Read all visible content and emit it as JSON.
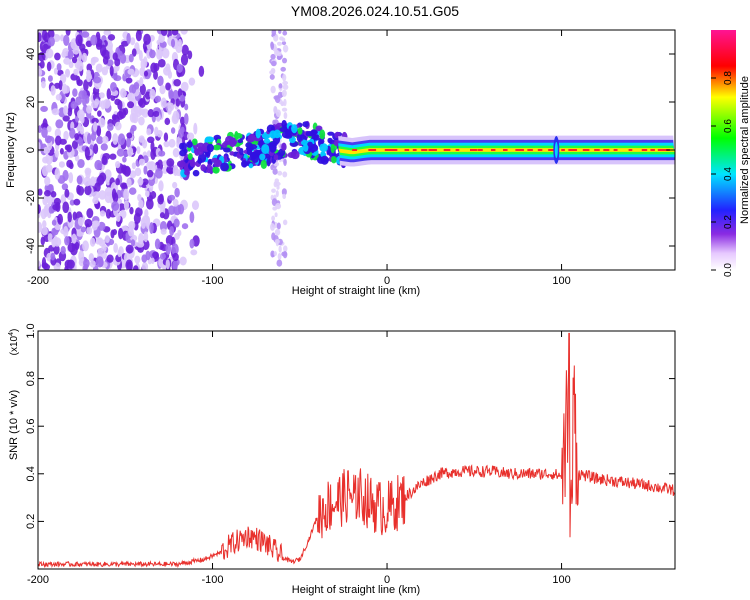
{
  "title": "YM08.2026.024.10.51.G05",
  "chart_data": [
    {
      "type": "heatmap",
      "xlabel": "Height of straight line (km)",
      "ylabel": "Frequency (Hz)",
      "xlim": [
        -200,
        165
      ],
      "ylim": [
        -50,
        50
      ],
      "x_ticks": [
        "-200",
        "-100",
        "0",
        "100"
      ],
      "x_tick_values": [
        -200,
        -100,
        0,
        100
      ],
      "y_ticks": [
        "-40",
        "-20",
        "0",
        "20",
        "40"
      ],
      "y_tick_values": [
        -40,
        -20,
        0,
        20,
        40
      ],
      "ridge": {
        "x": [
          -110,
          -100,
          -90,
          -80,
          -70,
          -60,
          -50,
          -40,
          -30,
          -20,
          -10,
          0,
          10,
          40,
          90,
          100,
          165
        ],
        "y": [
          -3,
          -2,
          -1,
          0,
          1,
          4,
          5,
          3,
          0,
          -1,
          0,
          0,
          0,
          0,
          0,
          0,
          0
        ]
      },
      "colorbar": {
        "label": "Normalized spectral amplitude",
        "range": [
          0,
          1
        ],
        "ticks": [
          "0.0",
          "0.2",
          "0.4",
          "0.6",
          "0.8"
        ],
        "tick_values": [
          0.0,
          0.2,
          0.4,
          0.6,
          0.8
        ]
      }
    },
    {
      "type": "line",
      "xlabel": "Height of straight line (km)",
      "ylabel": "SNR (10 * v/v)",
      "y_multiplier": "(x10",
      "y_multiplier_exp": "4",
      "y_multiplier_close": ")",
      "xlim": [
        -200,
        165
      ],
      "ylim": [
        0,
        1.0
      ],
      "x_ticks": [
        "-200",
        "-100",
        "0",
        "100"
      ],
      "x_tick_values": [
        -200,
        -100,
        0,
        100
      ],
      "y_ticks": [
        "0.2",
        "0.4",
        "0.6",
        "0.8",
        "1.0"
      ],
      "y_tick_values": [
        0.2,
        0.4,
        0.6,
        0.8,
        1.0
      ],
      "color": "#e8302c",
      "series": [
        {
          "name": "SNR",
          "x": [
            -200,
            -170,
            -140,
            -120,
            -105,
            -95,
            -90,
            -85,
            -80,
            -75,
            -70,
            -65,
            -60,
            -55,
            -50,
            -45,
            -40,
            -35,
            -30,
            -25,
            -20,
            -15,
            -10,
            -5,
            0,
            10,
            20,
            30,
            40,
            50,
            60,
            70,
            80,
            90,
            95,
            100,
            103,
            105,
            107,
            110,
            120,
            130,
            140,
            150,
            165
          ],
          "y": [
            0.02,
            0.02,
            0.02,
            0.02,
            0.04,
            0.07,
            0.1,
            0.12,
            0.14,
            0.13,
            0.11,
            0.08,
            0.05,
            0.03,
            0.04,
            0.12,
            0.22,
            0.26,
            0.28,
            0.3,
            0.32,
            0.31,
            0.28,
            0.26,
            0.25,
            0.3,
            0.36,
            0.4,
            0.41,
            0.41,
            0.41,
            0.4,
            0.4,
            0.4,
            0.4,
            0.39,
            0.6,
            0.05,
            0.7,
            0.4,
            0.38,
            0.37,
            0.36,
            0.35,
            0.33
          ]
        }
      ]
    }
  ]
}
